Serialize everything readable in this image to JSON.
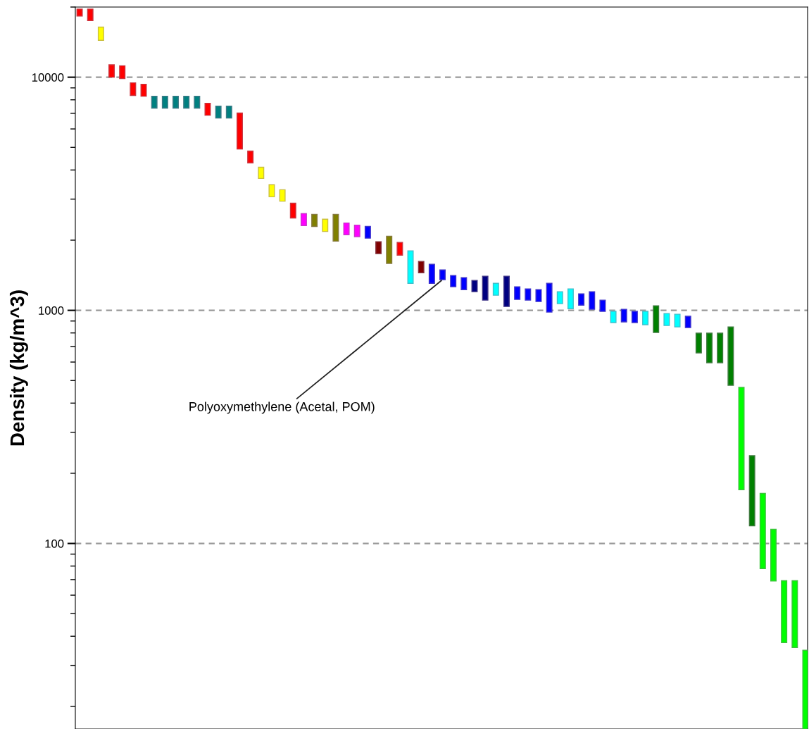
{
  "chart_data": {
    "type": "bar",
    "ylabel": "Density (kg/m^3)",
    "log": "y",
    "ylim": [
      16,
      20000
    ],
    "yticks": [
      100,
      1000,
      10000
    ],
    "grid": "y",
    "tick_labels": "y",
    "categories": [
      null,
      null,
      null,
      null,
      null,
      null,
      null,
      null,
      null,
      null,
      null,
      null,
      null,
      null,
      null,
      null,
      null,
      null,
      null,
      null,
      null,
      null,
      null,
      null,
      null,
      null,
      null,
      null,
      null,
      null,
      null,
      null,
      null,
      null,
      null,
      null,
      null,
      null,
      null,
      null,
      null,
      null,
      null,
      null,
      null,
      null,
      null,
      null,
      null,
      null,
      null,
      null,
      null,
      null,
      null,
      null,
      null,
      null,
      null,
      null,
      null,
      null,
      null,
      null,
      null,
      null,
      null,
      null,
      null
    ],
    "base": [
      18300,
      17500,
      14400,
      10000,
      9860,
      8350,
      8290,
      7370,
      7370,
      7370,
      7370,
      7370,
      6870,
      6680,
      6680,
      4920,
      4290,
      3680,
      3070,
      2940,
      2490,
      2310,
      2290,
      2180,
      1980,
      2110,
      2070,
      2040,
      1750,
      1590,
      1725,
      1306,
      1450,
      1306,
      1353,
      1262,
      1227,
      1202,
      1106,
      1161,
      1039,
      1114,
      1106,
      1091,
      983,
      1068,
      1017,
      1053,
      1010,
      990,
      886,
      892,
      886,
      868,
      804,
      861,
      849,
      843,
      657,
      596,
      596,
      477,
      170,
      119,
      78,
      69,
      37.6,
      35.8,
      16
    ],
    "values": [
      1300,
      2100,
      2000,
      1300,
      1340,
      1110,
      1040,
      920,
      920,
      920,
      920,
      920,
      860,
      840,
      840,
      2100,
      530,
      430,
      390,
      350,
      390,
      290,
      290,
      280,
      600,
      260,
      250,
      250,
      220,
      490,
      230,
      494,
      171,
      270,
      138,
      149,
      154,
      141,
      295,
      145,
      362,
      148,
      130,
      136,
      323,
      134,
      219,
      124,
      192,
      116,
      104,
      118,
      104,
      122,
      242,
      108,
      113,
      100,
      141,
      202,
      202,
      372,
      297,
      119,
      86,
      46,
      31.6,
      33.4,
      18.8
    ],
    "colors": [
      "#ff0000",
      "#ff0000",
      "#ffff00",
      "#ff0000",
      "#ff0000",
      "#ff0000",
      "#ff0000",
      "#008080",
      "#008080",
      "#008080",
      "#008080",
      "#008080",
      "#ff0000",
      "#008080",
      "#008080",
      "#ff0000",
      "#ff0000",
      "#ffff00",
      "#ffff00",
      "#ffff00",
      "#ff0000",
      "#ff00ff",
      "#808000",
      "#ffff00",
      "#808000",
      "#ff00ff",
      "#ff00ff",
      "#0000ff",
      "#800000",
      "#808000",
      "#ff0000",
      "#00ffff",
      "#800000",
      "#0000ff",
      "#0000ff",
      "#0000ff",
      "#0000ff",
      "#000080",
      "#000080",
      "#00ffff",
      "#000080",
      "#0000ff",
      "#0000ff",
      "#0000ff",
      "#0000ff",
      "#00ffff",
      "#00ffff",
      "#0000ff",
      "#0000ff",
      "#0000ff",
      "#00ffff",
      "#0000ff",
      "#0000ff",
      "#00ffff",
      "#008000",
      "#00ffff",
      "#00ffff",
      "#0000ff",
      "#008000",
      "#008000",
      "#008000",
      "#008000",
      "#00ff00",
      "#008000",
      "#00ff00",
      "#00ff00",
      "#00ff00",
      "#00ff00",
      "#00ff00"
    ],
    "annotations": [
      "Polyoxymethylene (Acetal, POM)"
    ]
  }
}
